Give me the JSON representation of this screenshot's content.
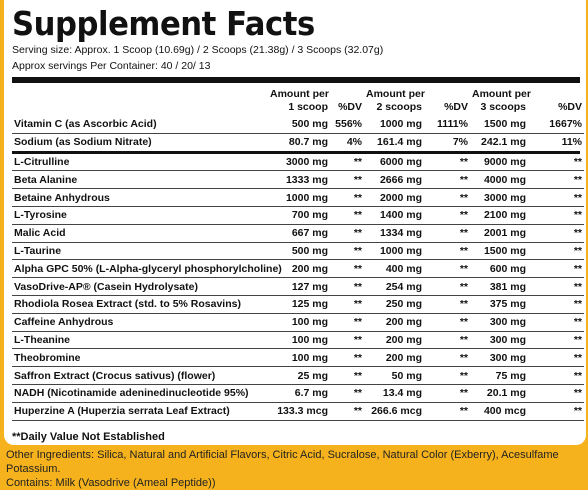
{
  "title": "Supplement Facts",
  "serving_size": "Serving size: Approx. 1 Scoop (10.69g) / 2 Scoops (21.38g) / 3 Scoops (32.07g)",
  "servings_per_container": "Approx servings Per Container: 40 / 20/ 13",
  "headers": {
    "amt1_line1": "Amount per",
    "amt1_line2": "1 scoop",
    "dv1": "%DV",
    "amt2_line1": "Amount per",
    "amt2_line2": "2 scoops",
    "dv2": "%DV",
    "amt3_line1": "Amount per",
    "amt3_line2": "3 scoops",
    "dv3": "%DV"
  },
  "vitamins": [
    {
      "name": "Vitamin C (as Ascorbic Acid)",
      "a1": "500 mg",
      "d1": "556%",
      "a2": "1000 mg",
      "d2": "1111%",
      "a3": "1500 mg",
      "d3": "1667%"
    },
    {
      "name": "Sodium (as Sodium Nitrate)",
      "a1": "80.7 mg",
      "d1": "4%",
      "a2": "161.4 mg",
      "d2": "7%",
      "a3": "242.1 mg",
      "d3": "11%"
    }
  ],
  "ingredients": [
    {
      "name": "L-Citrulline",
      "a1": "3000 mg",
      "d1": "**",
      "a2": "6000 mg",
      "d2": "**",
      "a3": "9000 mg",
      "d3": "**"
    },
    {
      "name": "Beta Alanine",
      "a1": "1333 mg",
      "d1": "**",
      "a2": "2666 mg",
      "d2": "**",
      "a3": "4000 mg",
      "d3": "**"
    },
    {
      "name": "Betaine Anhydrous",
      "a1": "1000 mg",
      "d1": "**",
      "a2": "2000 mg",
      "d2": "**",
      "a3": "3000 mg",
      "d3": "**"
    },
    {
      "name": "L-Tyrosine",
      "a1": "700 mg",
      "d1": "**",
      "a2": "1400 mg",
      "d2": "**",
      "a3": "2100 mg",
      "d3": "**"
    },
    {
      "name": "Malic Acid",
      "a1": "667 mg",
      "d1": "**",
      "a2": "1334 mg",
      "d2": "**",
      "a3": "2001 mg",
      "d3": "**"
    },
    {
      "name": "L-Taurine",
      "a1": "500 mg",
      "d1": "**",
      "a2": "1000 mg",
      "d2": "**",
      "a3": "1500 mg",
      "d3": "**"
    },
    {
      "name": "Alpha GPC 50% (L-Alpha-glyceryl phosphorylcholine)",
      "a1": "200 mg",
      "d1": "**",
      "a2": "400 mg",
      "d2": "**",
      "a3": "600 mg",
      "d3": "**"
    },
    {
      "name": "VasoDrive-AP® (Casein Hydrolysate)",
      "a1": "127 mg",
      "d1": "**",
      "a2": "254 mg",
      "d2": "**",
      "a3": "381 mg",
      "d3": "**"
    },
    {
      "name": "Rhodiola Rosea Extract (std. to 5% Rosavins)",
      "a1": "125 mg",
      "d1": "**",
      "a2": "250 mg",
      "d2": "**",
      "a3": "375 mg",
      "d3": "**"
    },
    {
      "name": "Caffeine Anhydrous",
      "a1": "100 mg",
      "d1": "**",
      "a2": "200 mg",
      "d2": "**",
      "a3": "300 mg",
      "d3": "**"
    },
    {
      "name": "L-Theanine",
      "a1": "100 mg",
      "d1": "**",
      "a2": "200 mg",
      "d2": "**",
      "a3": "300 mg",
      "d3": "**"
    },
    {
      "name": "Theobromine",
      "a1": "100 mg",
      "d1": "**",
      "a2": "200 mg",
      "d2": "**",
      "a3": "300 mg",
      "d3": "**"
    },
    {
      "name": "Saffron Extract (Crocus sativus) (flower)",
      "a1": "25 mg",
      "d1": "**",
      "a2": "50 mg",
      "d2": "**",
      "a3": "75 mg",
      "d3": "**"
    },
    {
      "name": "NADH (Nicotinamide adeninedinucleotide 95%)",
      "a1": "6.7 mg",
      "d1": "**",
      "a2": "13.4 mg",
      "d2": "**",
      "a3": "20.1 mg",
      "d3": "**"
    },
    {
      "name": "Huperzine A (Huperzia serrata Leaf Extract)",
      "a1": "133.3 mcg",
      "d1": "**",
      "a2": "266.6 mcg",
      "d2": "**",
      "a3": "400 mcg",
      "d3": "**"
    }
  ],
  "footnote": "**Daily Value Not Established",
  "other_ingredients": "Other Ingredients: Silica, Natural and Artificial Flavors, Citric Acid, Sucralose, Natural Color (Exberry), Acesulfame Potassium.",
  "contains": "Contains: Milk (Vasodrive (Ameal Peptide))",
  "colors": {
    "background": "#f6b21c",
    "panel": "#ffffff",
    "text": "#111111"
  }
}
